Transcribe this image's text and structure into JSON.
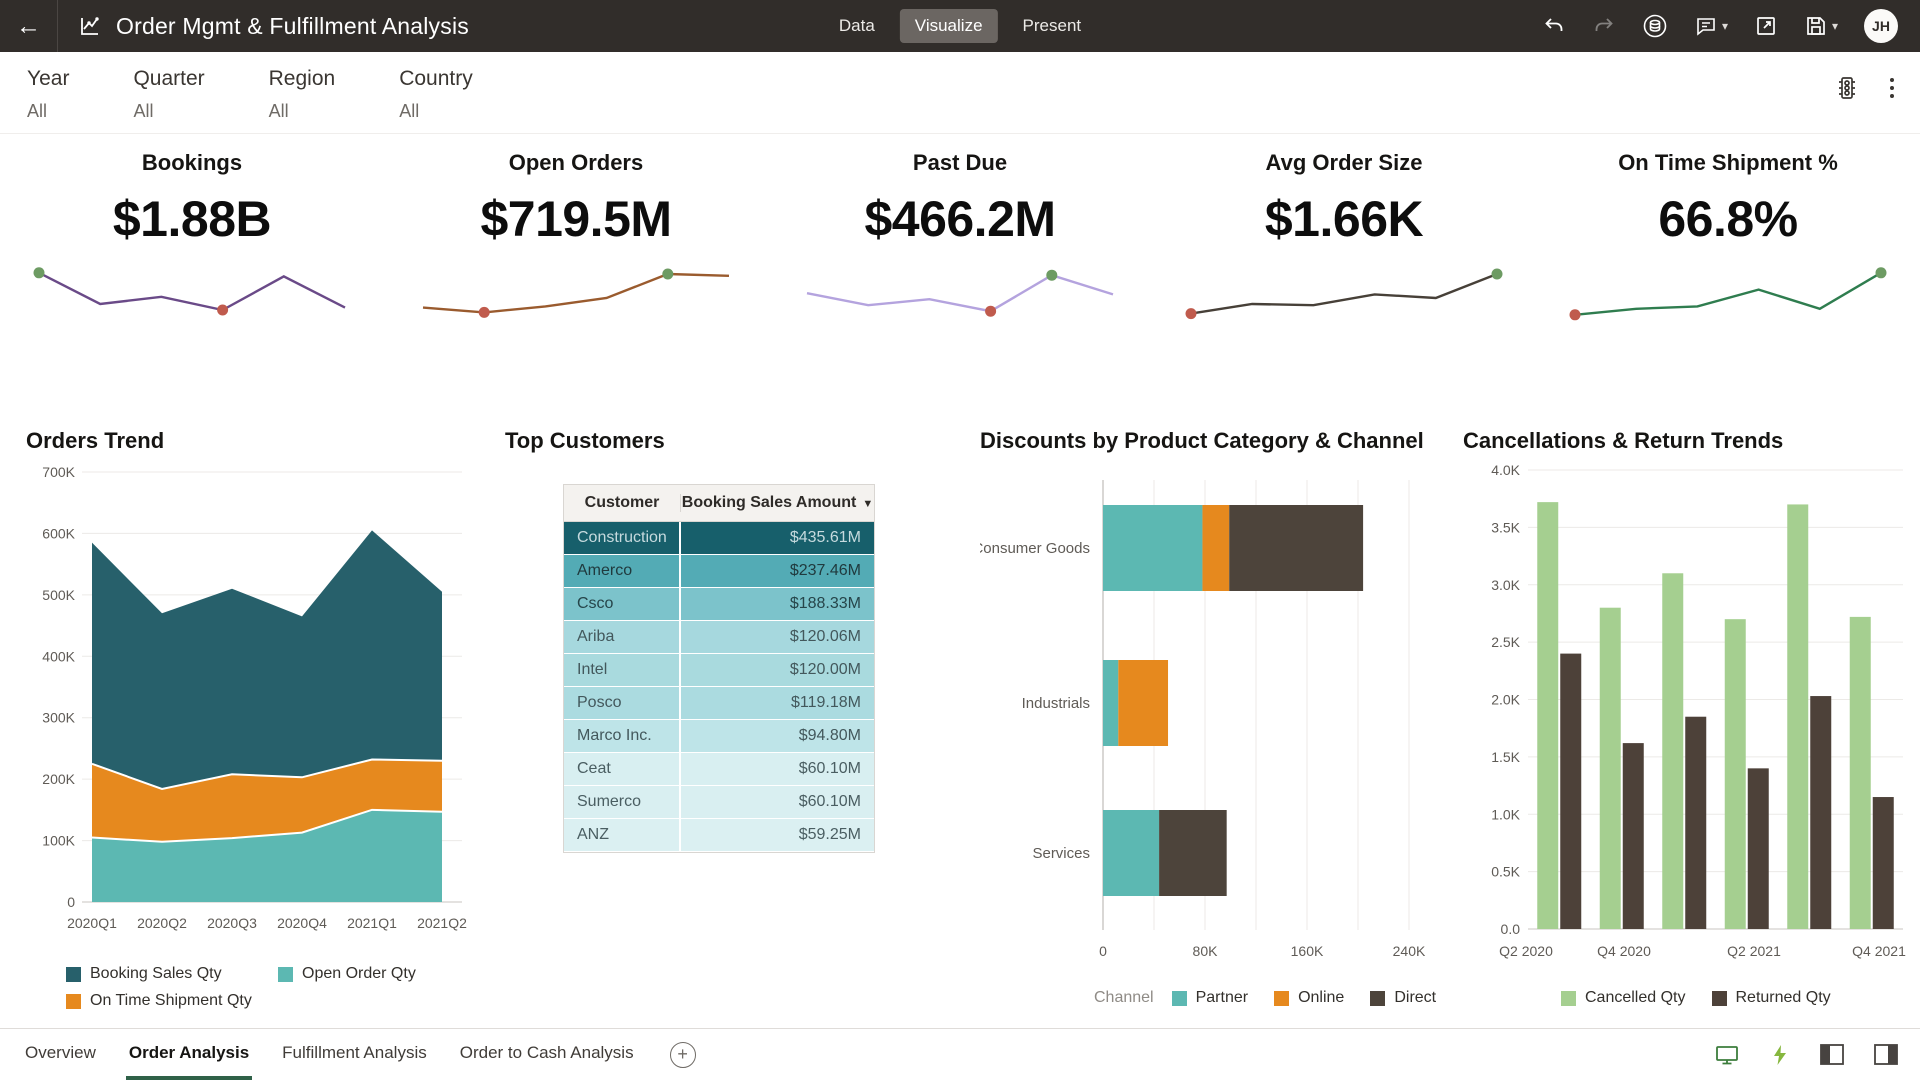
{
  "header": {
    "title": "Order Mgmt & Fulfillment Analysis",
    "tabs": [
      {
        "label": "Data",
        "active": false
      },
      {
        "label": "Visualize",
        "active": true
      },
      {
        "label": "Present",
        "active": false
      }
    ],
    "avatar_initials": "JH"
  },
  "filter_bar": {
    "filters": [
      {
        "label": "Year",
        "value": "All"
      },
      {
        "label": "Quarter",
        "value": "All"
      },
      {
        "label": "Region",
        "value": "All"
      },
      {
        "label": "Country",
        "value": "All"
      }
    ]
  },
  "kpi_dot_colors": {
    "high": "#6d9b63",
    "low": "#c05b4d"
  },
  "kpis": [
    {
      "title": "Bookings",
      "value": "$1.88B",
      "spark_color": "#6a4a88",
      "points": [
        0.92,
        0.4,
        0.52,
        0.3,
        0.86,
        0.34
      ],
      "high_dot": 0,
      "low_dot": 3
    },
    {
      "title": "Open Orders",
      "value": "$719.5M",
      "spark_color": "#9a5b2e",
      "points": [
        0.34,
        0.26,
        0.36,
        0.5,
        0.9,
        0.87
      ],
      "high_dot": 4,
      "low_dot": 1
    },
    {
      "title": "Past Due",
      "value": "$466.2M",
      "spark_color": "#b4a3de",
      "points": [
        0.58,
        0.38,
        0.48,
        0.28,
        0.88,
        0.56
      ],
      "high_dot": 4,
      "low_dot": 3
    },
    {
      "title": "Avg Order Size",
      "value": "$1.66K",
      "spark_color": "#474038",
      "points": [
        0.24,
        0.4,
        0.38,
        0.56,
        0.5,
        0.9
      ],
      "high_dot": 5,
      "low_dot": 0
    },
    {
      "title": "On Time Shipment %",
      "value": "66.8%",
      "spark_color": "#2f7d4f",
      "points": [
        0.22,
        0.32,
        0.36,
        0.64,
        0.32,
        0.92
      ],
      "high_dot": 5,
      "low_dot": 0
    }
  ],
  "orders_trend": {
    "type": "area-stacked",
    "title": "Orders Trend",
    "categories": [
      "2020Q1",
      "2020Q2",
      "2020Q3",
      "2020Q4",
      "2021Q1",
      "2021Q2"
    ],
    "stack_order": [
      "Open Order Qty",
      "On Time Shipment Qty",
      "Booking Sales Qty"
    ],
    "series": [
      {
        "name": "Booking Sales Qty",
        "color": "#27606b",
        "values": [
          360000,
          286000,
          302000,
          262000,
          373000,
          275000
        ]
      },
      {
        "name": "Open Order Qty",
        "color": "#5cb8b2",
        "values": [
          105000,
          98000,
          104000,
          113000,
          150000,
          147000
        ]
      },
      {
        "name": "On Time Shipment Qty",
        "color": "#e6891e",
        "values": [
          120000,
          86000,
          104000,
          90000,
          82000,
          83000
        ]
      }
    ],
    "legend_order": [
      "Booking Sales Qty",
      "Open Order Qty",
      "On Time Shipment Qty"
    ],
    "y_ticks": [
      "0",
      "100K",
      "200K",
      "300K",
      "400K",
      "500K",
      "600K",
      "700K"
    ],
    "y_max": 700000
  },
  "top_customers": {
    "title": "Top Customers",
    "columns": [
      "Customer",
      "Booking Sales Amount"
    ],
    "sort_icon": "▼",
    "rows": [
      {
        "customer": "Construction",
        "amount": "$435.61M",
        "bg": "#175f6b",
        "fg": "#c6dade"
      },
      {
        "customer": "Amerco",
        "amount": "$237.46M",
        "bg": "#53abb5",
        "fg": "#203a3e"
      },
      {
        "customer": "Csco",
        "amount": "$188.33M",
        "bg": "#7cc3cb",
        "fg": "#26454a"
      },
      {
        "customer": "Ariba",
        "amount": "$120.06M",
        "bg": "#a6d8de",
        "fg": "#43585c"
      },
      {
        "customer": "Intel",
        "amount": "$120.00M",
        "bg": "#a9dade",
        "fg": "#43585c"
      },
      {
        "customer": "Posco",
        "amount": "$119.18M",
        "bg": "#abdbe0",
        "fg": "#43585c"
      },
      {
        "customer": "Marco Inc.",
        "amount": "$94.80M",
        "bg": "#bee4e8",
        "fg": "#43585c"
      },
      {
        "customer": "Ceat",
        "amount": "$60.10M",
        "bg": "#d8eff1",
        "fg": "#4a5e62"
      },
      {
        "customer": "Sumerco",
        "amount": "$60.10M",
        "bg": "#d9eff1",
        "fg": "#4a5e62"
      },
      {
        "customer": "ANZ",
        "amount": "$59.25M",
        "bg": "#dbf0f2",
        "fg": "#4a5e62"
      }
    ]
  },
  "discounts": {
    "type": "bar-h-stacked",
    "title": "Discounts by Product Category & Channel",
    "categories": [
      "Consumer Goods",
      "Industrials",
      "Services"
    ],
    "legend_label": "Channel",
    "series": [
      {
        "name": "Partner",
        "color": "#5cb8b2",
        "values": [
          78000,
          12000,
          44000
        ]
      },
      {
        "name": "Online",
        "color": "#e6891e",
        "values": [
          21000,
          39000,
          0
        ]
      },
      {
        "name": "Direct",
        "color": "#4d443b",
        "values": [
          105000,
          0,
          53000
        ]
      }
    ],
    "x_ticks": [
      {
        "label": "0",
        "value": 0
      },
      {
        "label": "80K",
        "value": 80000
      },
      {
        "label": "160K",
        "value": 160000
      },
      {
        "label": "240K",
        "value": 240000
      }
    ],
    "x_max": 240000
  },
  "cancellations": {
    "type": "bar-grouped",
    "title": "Cancellations & Return Trends",
    "x_tick_labels": [
      "Q2 2020",
      "Q4 2020",
      "Q2 2021",
      "Q4 2021"
    ],
    "series": [
      {
        "name": "Cancelled Qty",
        "color": "#a5cf90",
        "values": [
          3720,
          2800,
          3100,
          2700,
          3700,
          2720
        ]
      },
      {
        "name": "Returned Qty",
        "color": "#4d4139",
        "values": [
          2400,
          1620,
          1850,
          1400,
          2030,
          1150
        ]
      }
    ],
    "y_ticks": [
      "0.0",
      "0.5K",
      "1.0K",
      "1.5K",
      "2.0K",
      "2.5K",
      "3.0K",
      "3.5K",
      "4.0K"
    ],
    "y_max": 4000
  },
  "footer": {
    "tabs": [
      {
        "label": "Overview",
        "active": false
      },
      {
        "label": "Order Analysis",
        "active": true
      },
      {
        "label": "Fulfillment Analysis",
        "active": false
      },
      {
        "label": "Order to Cash Analysis",
        "active": false
      }
    ],
    "add_label": "+"
  }
}
